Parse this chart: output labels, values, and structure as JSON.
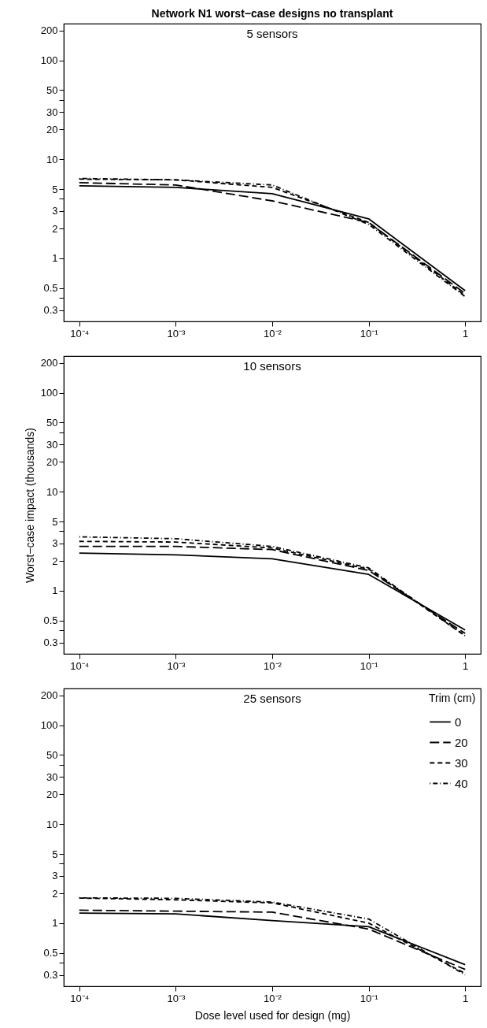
{
  "chart_data": [
    {
      "type": "line",
      "title": "Network N1 worst−case designs no transplant",
      "annotations": [
        "5 sensors"
      ],
      "x": [
        0.0001,
        0.001,
        0.01,
        0.1,
        1
      ],
      "series": [
        {
          "color": "#000000",
          "line_style": "solid",
          "values": [
            5.4,
            5.2,
            4.5,
            2.5,
            0.47
          ]
        },
        {
          "color": "#000000",
          "line_style": "longdash",
          "values": [
            5.8,
            5.5,
            3.8,
            2.3,
            0.44
          ]
        },
        {
          "color": "#000000",
          "line_style": "dashed",
          "values": [
            6.3,
            6.2,
            5.2,
            2.3,
            0.42
          ]
        },
        {
          "color": "#000000",
          "line_style": "dashdot",
          "values": [
            6.4,
            6.2,
            5.5,
            2.2,
            0.41
          ]
        }
      ],
      "xlim": [
        6.9e-05,
        1.45
      ],
      "ylim": [
        0.23,
        235
      ],
      "log": "xy",
      "grid": false,
      "legend": false,
      "xticks": [
        {
          "value": 0.0001,
          "label": "10⁻⁴"
        },
        {
          "value": 0.001,
          "label": "10⁻³"
        },
        {
          "value": 0.01,
          "label": "10⁻²"
        },
        {
          "value": 0.1,
          "label": "10⁻¹"
        },
        {
          "value": 1,
          "label": "1"
        }
      ],
      "yticks": [
        0.3,
        {
          "value": 0.4,
          "label": null
        },
        0.5,
        1,
        2,
        3,
        {
          "value": 4,
          "label": null
        },
        5,
        10,
        20,
        30,
        {
          "value": 40,
          "label": null
        },
        50,
        100,
        200
      ]
    },
    {
      "type": "line",
      "ylabel": "Worst−case impact (thousands)",
      "annotations": [
        "10 sensors"
      ],
      "x": [
        0.0001,
        0.001,
        0.01,
        0.1,
        1
      ],
      "series": [
        {
          "color": "#000000",
          "line_style": "solid",
          "values": [
            2.4,
            2.3,
            2.1,
            1.46,
            0.4
          ]
        },
        {
          "color": "#000000",
          "line_style": "longdash",
          "values": [
            2.8,
            2.8,
            2.6,
            1.6,
            0.37
          ]
        },
        {
          "color": "#000000",
          "line_style": "dashed",
          "values": [
            3.15,
            3.1,
            2.7,
            1.65,
            0.35
          ]
        },
        {
          "color": "#000000",
          "line_style": "dashdot",
          "values": [
            3.5,
            3.35,
            2.8,
            1.7,
            0.35
          ]
        }
      ],
      "xlim": [
        6.9e-05,
        1.45
      ],
      "ylim": [
        0.23,
        235
      ],
      "log": "xy",
      "grid": false,
      "legend": false,
      "xticks": [
        {
          "value": 0.0001,
          "label": "10⁻⁴"
        },
        {
          "value": 0.001,
          "label": "10⁻³"
        },
        {
          "value": 0.01,
          "label": "10⁻²"
        },
        {
          "value": 0.1,
          "label": "10⁻¹"
        },
        {
          "value": 1,
          "label": "1"
        }
      ],
      "yticks": [
        0.3,
        {
          "value": 0.4,
          "label": null
        },
        0.5,
        1,
        2,
        3,
        {
          "value": 4,
          "label": null
        },
        5,
        10,
        20,
        30,
        {
          "value": 40,
          "label": null
        },
        50,
        100,
        200
      ]
    },
    {
      "type": "line",
      "xlabel": "Dose level used for design (mg)",
      "annotations": [
        "25 sensors"
      ],
      "legend_title": "Trim (cm)",
      "x": [
        0.0001,
        0.001,
        0.01,
        0.1,
        1
      ],
      "series": [
        {
          "name": "0",
          "color": "#000000",
          "line_style": "solid",
          "values": [
            1.26,
            1.24,
            1.06,
            0.92,
            0.38
          ]
        },
        {
          "name": "20",
          "color": "#000000",
          "line_style": "longdash",
          "values": [
            1.35,
            1.32,
            1.29,
            0.87,
            0.34
          ]
        },
        {
          "name": "30",
          "color": "#000000",
          "line_style": "dashed",
          "values": [
            1.79,
            1.72,
            1.6,
            1.0,
            0.31
          ]
        },
        {
          "name": "40",
          "color": "#000000",
          "line_style": "dashdot",
          "values": [
            1.8,
            1.78,
            1.63,
            1.1,
            0.3
          ]
        }
      ],
      "xlim": [
        6.9e-05,
        1.45
      ],
      "ylim": [
        0.23,
        235
      ],
      "log": "xy",
      "grid": false,
      "legend": "top right",
      "xticks": [
        {
          "value": 0.0001,
          "label": "10⁻⁴"
        },
        {
          "value": 0.001,
          "label": "10⁻³"
        },
        {
          "value": 0.01,
          "label": "10⁻²"
        },
        {
          "value": 0.1,
          "label": "10⁻¹"
        },
        {
          "value": 1,
          "label": "1"
        }
      ],
      "yticks": [
        0.3,
        {
          "value": 0.4,
          "label": null
        },
        0.5,
        1,
        2,
        3,
        {
          "value": 4,
          "label": null
        },
        5,
        10,
        20,
        30,
        {
          "value": 40,
          "label": null
        },
        50,
        100,
        200
      ]
    }
  ]
}
